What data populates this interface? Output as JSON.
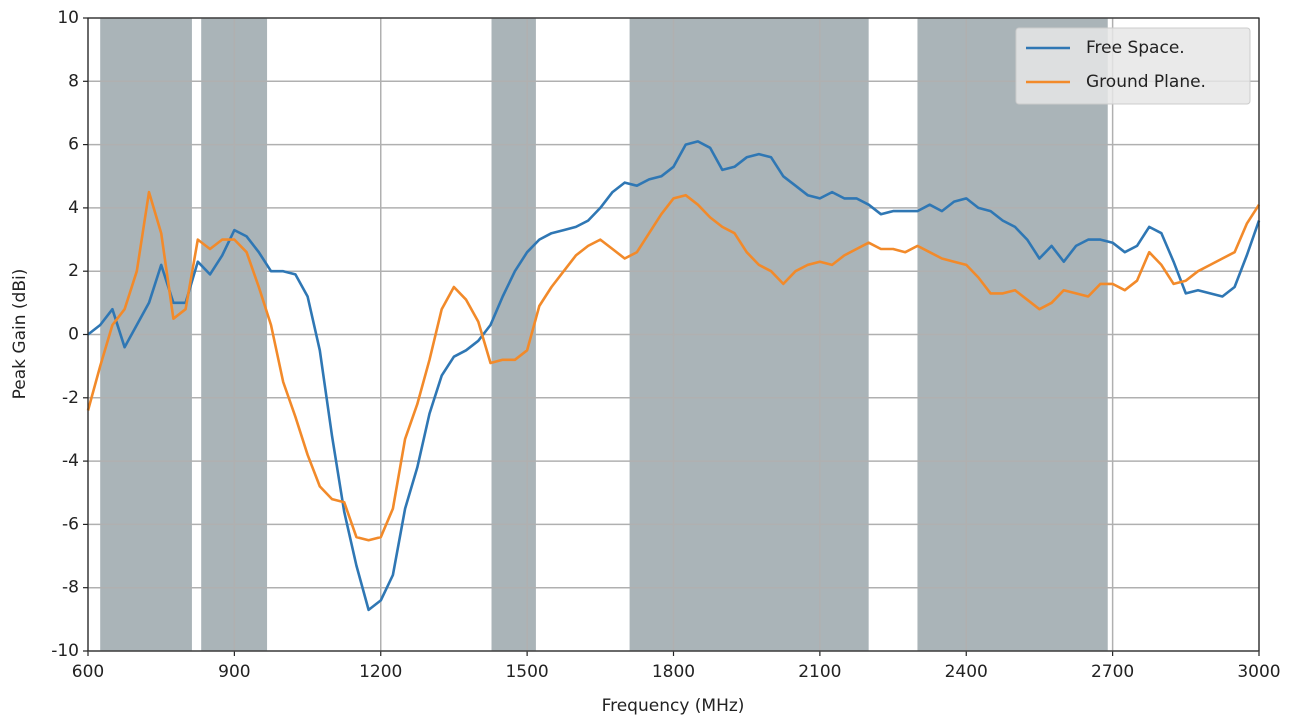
{
  "chart_data": {
    "type": "line",
    "xlabel": "Frequency (MHz)",
    "ylabel": "Peak Gain (dBi)",
    "xlim": [
      600,
      3000
    ],
    "ylim": [
      -10,
      10
    ],
    "xticks": [
      600,
      900,
      1200,
      1500,
      1800,
      2100,
      2400,
      2700,
      3000
    ],
    "yticks": [
      -10,
      -8,
      -6,
      -4,
      -2,
      0,
      2,
      4,
      6,
      8,
      10
    ],
    "grid": true,
    "legend": "upper right",
    "band_color": "#aab4b8",
    "bands": [
      [
        625,
        813
      ],
      [
        832,
        967
      ],
      [
        1427,
        1518
      ],
      [
        1710,
        2200
      ],
      [
        2300,
        2690
      ]
    ],
    "x": [
      600,
      625,
      650,
      675,
      700,
      725,
      750,
      775,
      800,
      825,
      850,
      875,
      900,
      925,
      950,
      975,
      1000,
      1025,
      1050,
      1075,
      1100,
      1125,
      1150,
      1175,
      1200,
      1225,
      1250,
      1275,
      1300,
      1325,
      1350,
      1375,
      1400,
      1425,
      1450,
      1475,
      1500,
      1525,
      1550,
      1575,
      1600,
      1625,
      1650,
      1675,
      1700,
      1725,
      1750,
      1775,
      1800,
      1825,
      1850,
      1875,
      1900,
      1925,
      1950,
      1975,
      2000,
      2025,
      2050,
      2075,
      2100,
      2125,
      2150,
      2175,
      2200,
      2225,
      2250,
      2275,
      2300,
      2325,
      2350,
      2375,
      2400,
      2425,
      2450,
      2475,
      2500,
      2525,
      2550,
      2575,
      2600,
      2625,
      2650,
      2675,
      2700,
      2725,
      2750,
      2775,
      2800,
      2825,
      2850,
      2875,
      2900,
      2925,
      2950,
      2975,
      3000
    ],
    "series": [
      {
        "name": "Free Space.",
        "color": "#2f77b4",
        "values": [
          0,
          0.3,
          0.8,
          -0.4,
          0.3,
          1.0,
          2.2,
          1.0,
          1.0,
          2.3,
          1.9,
          2.5,
          3.3,
          3.1,
          2.6,
          2.0,
          2.0,
          1.9,
          1.2,
          -0.5,
          -3.2,
          -5.6,
          -7.3,
          -8.7,
          -8.4,
          -7.6,
          -5.5,
          -4.2,
          -2.5,
          -1.3,
          -0.7,
          -0.5,
          -0.2,
          0.3,
          1.2,
          2.0,
          2.6,
          3.0,
          3.2,
          3.3,
          3.4,
          3.6,
          4.0,
          4.5,
          4.8,
          4.7,
          4.9,
          5.0,
          5.3,
          6.0,
          6.1,
          5.9,
          5.2,
          5.3,
          5.6,
          5.7,
          5.6,
          5.0,
          4.7,
          4.4,
          4.3,
          4.5,
          4.3,
          4.3,
          4.1,
          3.8,
          3.9,
          3.9,
          3.9,
          4.1,
          3.9,
          4.2,
          4.3,
          4.0,
          3.9,
          3.6,
          3.4,
          3.0,
          2.4,
          2.8,
          2.3,
          2.8,
          3.0,
          3.0,
          2.9,
          2.6,
          2.8,
          3.4,
          3.2,
          2.3,
          1.3,
          1.4,
          1.3,
          1.2,
          1.5,
          2.5,
          3.6
        ]
      },
      {
        "name": "Ground Plane.",
        "color": "#f28a2a",
        "values": [
          -2.4,
          -1.0,
          0.3,
          0.8,
          2.0,
          4.5,
          3.2,
          0.5,
          0.8,
          3.0,
          2.7,
          3.0,
          3.0,
          2.6,
          1.5,
          0.3,
          -1.5,
          -2.6,
          -3.8,
          -4.8,
          -5.2,
          -5.3,
          -6.4,
          -6.5,
          -6.4,
          -5.5,
          -3.3,
          -2.2,
          -0.8,
          0.8,
          1.5,
          1.1,
          0.4,
          -0.9,
          -0.8,
          -0.8,
          -0.5,
          0.9,
          1.5,
          2.0,
          2.5,
          2.8,
          3.0,
          2.7,
          2.4,
          2.6,
          3.2,
          3.8,
          4.3,
          4.4,
          4.1,
          3.7,
          3.4,
          3.2,
          2.6,
          2.2,
          2.0,
          1.6,
          2.0,
          2.2,
          2.3,
          2.2,
          2.5,
          2.7,
          2.9,
          2.7,
          2.7,
          2.6,
          2.8,
          2.6,
          2.4,
          2.3,
          2.2,
          1.8,
          1.3,
          1.3,
          1.4,
          1.1,
          0.8,
          1.0,
          1.4,
          1.3,
          1.2,
          1.6,
          1.6,
          1.4,
          1.7,
          2.6,
          2.2,
          1.6,
          1.7,
          2.0,
          2.2,
          2.4,
          2.6,
          3.5,
          4.1
        ]
      }
    ]
  }
}
